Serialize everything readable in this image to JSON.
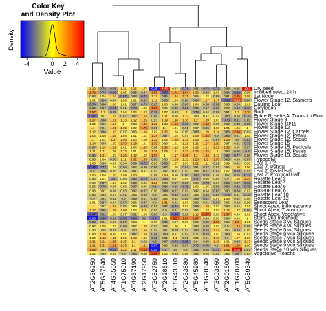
{
  "chart_data": {
    "type": "heatmap",
    "color_key": {
      "title_lines": [
        "Color Key",
        "and Density Plot"
      ],
      "xlabel": "Value",
      "ylabel": "Density",
      "ticks": [
        "-4",
        "0",
        "2",
        "4"
      ],
      "tick_values": [
        -4,
        0,
        2,
        4
      ],
      "range": [
        -5,
        5
      ],
      "colors": [
        "#0000ff",
        "#ffff00",
        "#ff0000"
      ]
    },
    "columns": [
      "AT2G36250",
      "AT5G57940",
      "AT4G35550",
      "AT1G75010",
      "AT4G37190",
      "AT2G17950",
      "AT3G52750",
      "AT2G28610",
      "AT5G43810",
      "AT2G33880",
      "AT5G45980",
      "AT1G20840",
      "AT3G03660",
      "AT2G01500",
      "AT1G20700",
      "AT5G59340"
    ],
    "rows": [
      "Dry seed",
      "Imbibed seed, 24 h",
      "1st Node",
      "Flower Stage 12, Stamens",
      "Cauline Leaf",
      "Cotyledon",
      "Root",
      "Entire Rosette A. Trans. to Flower",
      "Flower Stage 9",
      "Flower Stage 10/11",
      "Flower Stage 12",
      "Flower Stage 12, Carpels",
      "Flower Stage 12, Petals",
      "Flower Stage 12, Sepals",
      "Flower Stage 15",
      "Flower Stage 15, Pedicels",
      "Flower Stage 15, Petals",
      "Flower Stage 15, Sepals",
      "Hypocotyl",
      "Leaf 1 + 2",
      "Leaf 7, Petiole",
      "Leaf 7, Distal Half",
      "Leaf 7, Proximal Half",
      "Rosette Leaf 2",
      "Rosette Leaf 4",
      "Rosette Leaf 6",
      "Rosette Leaf 8",
      "Rosette Leaf 10",
      "Rosette Leaf 12",
      "Senescent Leaf",
      "Shoot Apex, Inflorescence",
      "Shoot Apex, Transition",
      "Shoot Apex, Vegetative",
      "Stem, 2nd Internode",
      "Seeds Stage 3 w/ Siliques",
      "Seeds Stage 4 w/ Siliques",
      "Seeds Stage 5 w/ Siliques",
      "Seeds Stage 6 w/o Siliques",
      "Seeds Stage 7 w/o Siliques",
      "Seeds Stage 8 w/o Siliques",
      "Seeds Stage 9 w/o Siliques",
      "Seeds Stage 10 w/o Siliques",
      "Vegetative Rosette"
    ],
    "row_labels_printed": [
      "Dry seed",
      "Imbibed seed, 24 h",
      "1st Node",
      "Flower Stage 12, Stamens",
      "Cauline Leaf",
      "Cotyledon",
      "Root",
      "Entire Rosette A. Trans. to Flow",
      "Flower Stage 9",
      "Flower Stage 10/11",
      "Flower Stage 12",
      "Flower Stage 12, Carpels",
      "Flower Stage 12, Petals",
      "Flower Stage 12, Sepals",
      "Flower Stage 15",
      "Flower Stage 15, Pedicels",
      "Flower Stage 15, Petals",
      "Flower Stage 15, Sepals",
      "Hypocotyl",
      "Leaf 1 + 2",
      "Leaf 7, Petiole",
      "Leaf 7, Distal Half",
      "Leaf 7, Proximal Half",
      "Rosette Leaf 2",
      "Rosette Leaf 4",
      "Rosette Leaf 6",
      "Rosette Leaf 8",
      "Rosette Leaf 10",
      "Rosette Leaf 12",
      "Senescent Leaf",
      "Shoot Apex, Inflorescence",
      "Shoot Apex, Transition",
      "Shoot Apex, Vegetative",
      "Stem, 2nd Internode",
      "Seeds Stage 3 w/ Siliques",
      "Seeds Stage 4 w/ Siliques",
      "Seeds Stage 5 w/ Siliques",
      "Seeds Stage 6 w/o Siliques",
      "Seeds Stage 7 w/o Siliques",
      "Seeds Stage 8 w/o Siliques",
      "Seeds Stage 9 w/o Siliques",
      "Seeds Stage 10 w/o Siliques",
      "Vegetative Rosette"
    ],
    "values": [
      [
        1.12,
        0.78,
        0.78,
        1.11,
        1.15,
        1.07,
        0.16,
        4.49,
        0.97,
        0.71,
        0.85,
        0.74,
        0.73,
        0.88,
        0.86,
        12.2
      ],
      [
        1.72,
        0.78,
        0.69,
        1.05,
        0.85,
        0.87,
        1.55,
        0.59,
        1.71,
        1.64,
        1.23,
        0.88,
        1.03,
        0.84,
        0.62,
        0.96
      ],
      [
        0.93,
        1.04,
        1.14,
        0.67,
        0.88,
        0.72,
        1.12,
        0.85,
        1.24,
        1.31,
        0.95,
        1.02,
        0.88,
        0.91,
        2.05,
        1.09
      ],
      [
        1.02,
        0.84,
        0.94,
        1.06,
        1.01,
        0.82,
        1.11,
        0.85,
        1.09,
        0.88,
        0.84,
        1.17,
        1.17,
        0.58,
        3.19,
        0.84
      ],
      [
        0.74,
        0.86,
        1.06,
        1.01,
        0.87,
        0.79,
        0.85,
        1.08,
        0.96,
        0.86,
        1.04,
        0.88,
        0.82,
        0.95,
        0.89,
        1.01
      ],
      [
        0.85,
        0.87,
        0.71,
        0.91,
        0.78,
        1.02,
        1.96,
        0.96,
        0.85,
        0.81,
        0.85,
        0.87,
        0.83,
        0.93,
        0.82,
        0.78
      ],
      [
        1.57,
        1.1,
        0.85,
        1.04,
        1.04,
        1.13,
        0.78,
        1.07,
        0.93,
        1.1,
        0.79,
        0.94,
        0.88,
        0.91,
        1.1,
        1.39
      ],
      [
        0.57,
        0.97,
        1.11,
        0.87,
        0.87,
        1.24,
        0.88,
        1.11,
        0.98,
        1.12,
        0.98,
        0.97,
        0.97,
        0.88,
        0.93,
        0.78
      ],
      [
        1.27,
        0.88,
        1.21,
        1.13,
        1.12,
        1.25,
        0.93,
        1.19,
        1.18,
        1.18,
        1.2,
        1.19,
        1.03,
        0.73,
        0.81,
        0.85
      ],
      [
        1.02,
        0.92,
        1.14,
        1.0,
        0.98,
        1.36,
        1.22,
        1.08,
        1.56,
        0.79,
        0.92,
        1.63,
        0.95,
        0.92,
        0.88,
        0.85
      ],
      [
        1.1,
        0.91,
        1.21,
        1.15,
        1.02,
        1.75,
        0.89,
        1.1,
        1.01,
        0.91,
        0.97,
        0.86,
        1.06,
        1.06,
        1.06,
        1.0
      ],
      [
        1.12,
        0.88,
        1.13,
        0.97,
        0.96,
        1.16,
        1.02,
        1.22,
        1.04,
        0.95,
        0.88,
        1.09,
        1.14,
        0.88,
        2.04,
        0.92
      ],
      [
        1.06,
        1.08,
        1.15,
        1.04,
        1.01,
        1.02,
        1.34,
        0.87,
        1.04,
        0.97,
        1.09,
        1.64,
        0.9,
        0.83,
        0.91,
        1.02
      ],
      [
        1.1,
        1.02,
        1.2,
        1.09,
        1.04,
        1.08,
        1.22,
        1.06,
        1.28,
        1.15,
        1.09,
        1.12,
        0.87,
        1.26,
        0.9,
        0.82
      ],
      [
        1.14,
        0.95,
        1.05,
        1.33,
        1.19,
        1.01,
        1.35,
        0.98,
        1.01,
        1.12,
        1.12,
        1.27,
        1.28,
        0.97,
        0.92,
        0.79
      ],
      [
        0.87,
        1.15,
        1.21,
        1.01,
        1.04,
        1.25,
        0.95,
        1.33,
        1.12,
        1.06,
        1.13,
        1.14,
        1.23,
        1.32,
        0.95,
        0.87
      ],
      [
        1.11,
        1.11,
        1.08,
        1.12,
        1.01,
        1.09,
        1.26,
        1.09,
        1.11,
        1.23,
        1.26,
        1.42,
        1.1,
        0.93,
        0.85,
        0.8
      ],
      [
        0.86,
        1.21,
        1.03,
        1.26,
        1.12,
        1.03,
        1.53,
        1.0,
        1.17,
        1.49,
        1.2,
        1.34,
        1.13,
        0.82,
        0.77,
        0.88
      ],
      [
        0.95,
        1.04,
        0.88,
        1.11,
        1.32,
        1.33,
        0.86,
        0.96,
        1.25,
        1.15,
        1.28,
        1.3,
        1.36,
        0.85,
        0.93,
        0.87
      ],
      [
        1.05,
        0.94,
        0.99,
        0.94,
        0.89,
        0.72,
        0.93,
        0.83,
        1.07,
        1.03,
        1.21,
        1.11,
        0.92,
        0.99,
        0.92,
        0.98
      ],
      [
        0.44,
        0.72,
        1.04,
        0.86,
        0.92,
        0.89,
        0.86,
        0.87,
        1.05,
        0.84,
        0.91,
        0.87,
        0.91,
        0.94,
        1.16,
        1.06
      ],
      [
        0.9,
        0.86,
        0.95,
        0.94,
        0.91,
        0.97,
        0.93,
        0.92,
        0.91,
        0.93,
        0.94,
        0.87,
        0.87,
        1.02,
        0.79,
        0.91
      ],
      [
        1.06,
        1.04,
        1.05,
        1.04,
        1.08,
        1.0,
        0.94,
        1.09,
        0.98,
        0.86,
        0.83,
        0.83,
        0.94,
        0.92,
        0.85,
        0.72
      ],
      [
        0.96,
        1.01,
        0.8,
        0.96,
        0.83,
        0.75,
        0.87,
        0.85,
        0.97,
        0.99,
        0.77,
        0.95,
        0.94,
        0.9,
        1.08,
        1.34
      ],
      [
        0.98,
        0.87,
        1.04,
        1.02,
        0.89,
        0.96,
        1.23,
        0.93,
        0.87,
        0.86,
        0.94,
        0.78,
        0.94,
        0.84,
        0.87,
        0.76
      ],
      [
        0.95,
        0.79,
        0.96,
        0.98,
        0.87,
        0.95,
        0.8,
        0.84,
        0.85,
        0.75,
        1.02,
        1.06,
        0.88,
        0.84,
        0.82,
        0.75
      ],
      [
        0.98,
        0.97,
        0.94,
        0.93,
        0.92,
        0.87,
        0.96,
        0.84,
        0.87,
        0.92,
        0.92,
        0.94,
        0.83,
        0.93,
        0.84,
        0.97
      ],
      [
        0.94,
        0.93,
        0.97,
        0.91,
        0.95,
        0.89,
        0.9,
        0.92,
        0.83,
        0.87,
        0.95,
        0.88,
        0.84,
        0.75,
        0.91,
        0.78
      ],
      [
        0.9,
        0.92,
        0.92,
        0.9,
        0.89,
        0.91,
        0.88,
        0.94,
        0.92,
        0.88,
        0.89,
        0.81,
        0.97,
        1.08,
        0.92,
        0.96
      ],
      [
        1.01,
        0.87,
        0.94,
        0.87,
        0.96,
        0.87,
        0.9,
        1.31,
        0.91,
        1.03,
        0.93,
        0.91,
        0.83,
        0.96,
        0.92,
        0.96
      ],
      [
        1.1,
        0.97,
        1.23,
        0.95,
        0.99,
        0.83,
        0.91,
        0.87,
        0.74,
        1.03,
        0.89,
        1.19,
        1.02,
        0.93,
        0.94,
        1.01
      ],
      [
        1.17,
        0.85,
        1.15,
        1.08,
        1.02,
        1.1,
        0.93,
        0.9,
        0.91,
        0.93,
        0.96,
        1.03,
        1.02,
        1.14,
        1.07,
        0.86
      ],
      [
        0.47,
        0.82,
        1.03,
        0.97,
        0.92,
        1.03,
        0.88,
        0.9,
        0.55,
        0.92,
        1.15,
        2.87,
        0.98,
        1.67,
        0.99,
        1.01
      ],
      [
        0.06,
        0.65,
        0.81,
        0.68,
        0.64,
        0.8,
        0.6,
        1.01,
        2.8,
        1.86,
        1.87,
        0.94,
        0.98,
        0.94,
        0.99,
        1.0
      ],
      [
        0.83,
        0.91,
        0.94,
        0.87,
        0.98,
        1.0,
        0.98,
        0.86,
        0.97,
        0.99,
        0.94,
        0.85,
        1.53,
        0.94,
        1.6,
        1.01
      ],
      [
        0.97,
        1.05,
        1.02,
        0.89,
        0.97,
        1.08,
        0.93,
        0.92,
        1.06,
        1.0,
        0.93,
        0.88,
        1.02,
        0.9,
        1.44,
        0.89
      ],
      [
        0.98,
        0.95,
        0.91,
        0.9,
        0.93,
        1.14,
        0.92,
        0.91,
        0.89,
        0.92,
        0.89,
        0.84,
        1.22,
        0.95,
        0.84,
        0.95
      ],
      [
        0.98,
        1.18,
        0.99,
        1.01,
        0.87,
        1.13,
        0.84,
        0.89,
        0.97,
        0.92,
        0.9,
        0.83,
        1.03,
        0.89,
        1.04,
        0.97
      ],
      [
        1.02,
        1.18,
        1.11,
        1.06,
        1.13,
        1.06,
        0.81,
        0.91,
        1.1,
        0.91,
        0.95,
        0.91,
        1.16,
        0.9,
        1.07,
        1.06
      ],
      [
        1.21,
        1.21,
        1.35,
        1.15,
        1.1,
        0.92,
        0.8,
        0.87,
        0.73,
        0.65,
        0.9,
        0.89,
        1.18,
        1.01,
        0.88,
        1.17
      ],
      [
        1.21,
        1.31,
        1.61,
        1.23,
        1.1,
        1.21,
        0.07,
        0.93,
        0.88,
        0.87,
        0.79,
        0.79,
        0.9,
        1.51,
        1.59,
        1.09
      ],
      [
        1.55,
        0.94,
        0.61,
        1.22,
        1.11,
        2.43,
        0.03,
        0.8,
        0.9,
        0.9,
        0.85,
        0.85,
        0.73,
        1.45,
        6.08,
        0.87
      ],
      [
        1.02,
        0.95,
        0.99,
        0.9,
        0.84,
        0.96,
        2.96,
        1.04,
        0.94,
        0.96,
        0.92,
        0.95,
        0.92,
        0.96,
        0.8,
        0.93
      ]
    ],
    "legend": "top-left",
    "grid": false
  }
}
